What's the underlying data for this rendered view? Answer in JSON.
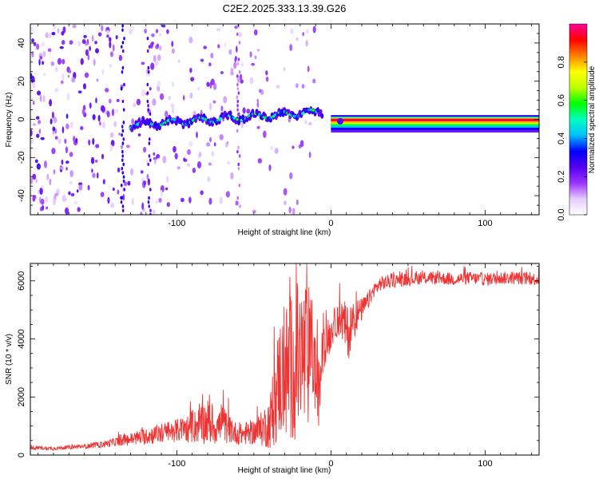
{
  "title": "C2E2.2025.333.13.39.G26",
  "chart_data": [
    {
      "type": "heatmap",
      "name": "spectrogram",
      "xlabel": "Height of straight line (km)",
      "ylabel": "Frequency (Hz)",
      "xlim": [
        -195,
        135
      ],
      "ylim": [
        -50,
        50
      ],
      "xticks": [
        -100,
        0,
        100
      ],
      "yticks": [
        -40,
        -20,
        0,
        20,
        40
      ],
      "colorbar": {
        "label": "Normalized spectral amplitude",
        "range": [
          0,
          1
        ],
        "ticks": [
          0.0,
          0.2,
          0.4,
          0.6,
          0.8
        ],
        "tick_labels": [
          "0.0",
          "0.2",
          "0.4",
          "0.6",
          "0.8"
        ],
        "colors": [
          "#ffffff",
          "#e6ccff",
          "#9933ff",
          "#5500ee",
          "#0000ff",
          "#00bfff",
          "#00ffbf",
          "#00ff00",
          "#bfff00",
          "#ffff00",
          "#ff8000",
          "#ff0000",
          "#ff0099"
        ]
      },
      "features": {
        "carrier_line": {
          "x_start": 0,
          "x_end": 135,
          "frequency_hz": 0,
          "amplitude": 0.95
        },
        "drifting_signal": {
          "x_start": -130,
          "x_end": -5,
          "frequency_start_hz": -3,
          "frequency_end_hz": 4,
          "amplitude_range": [
            0.3,
            0.6
          ]
        },
        "noise_region": {
          "x_start": -195,
          "x_end": -10,
          "amplitude_range": [
            0.05,
            0.3
          ]
        }
      }
    },
    {
      "type": "line",
      "name": "snr",
      "xlabel": "Height of straight line (km)",
      "ylabel": "SNR (10 * v/v)",
      "xlim": [
        -195,
        135
      ],
      "ylim": [
        0,
        6600
      ],
      "xticks": [
        -100,
        0,
        100
      ],
      "yticks": [
        0,
        2000,
        4000,
        6000
      ],
      "color": "#ee3333",
      "series": [
        {
          "name": "SNR",
          "x": [
            -195,
            -180,
            -160,
            -150,
            -140,
            -130,
            -120,
            -110,
            -100,
            -95,
            -90,
            -85,
            -80,
            -75,
            -70,
            -65,
            -60,
            -55,
            -50,
            -45,
            -40,
            -36,
            -34,
            -30,
            -26,
            -22,
            -18,
            -15,
            -12,
            -10,
            -8,
            -5,
            -2,
            0,
            2,
            5,
            8,
            10,
            12,
            15,
            18,
            20,
            24,
            28,
            32,
            40,
            50,
            60,
            70,
            80,
            90,
            100,
            110,
            120,
            135
          ],
          "y": [
            250,
            230,
            300,
            350,
            450,
            550,
            650,
            750,
            850,
            900,
            950,
            1050,
            1150,
            950,
            1050,
            850,
            700,
            750,
            800,
            900,
            1100,
            1800,
            2600,
            2800,
            3000,
            3200,
            3300,
            3400,
            3600,
            2700,
            2000,
            3800,
            4000,
            4200,
            4500,
            4700,
            4600,
            4300,
            4200,
            4700,
            4900,
            5000,
            5300,
            5700,
            5900,
            6000,
            6050,
            6100,
            6100,
            6050,
            6100,
            6050,
            6100,
            6100,
            6050
          ],
          "noise_amplitude": [
            60,
            60,
            80,
            100,
            150,
            220,
            300,
            350,
            400,
            450,
            550,
            650,
            800,
            600,
            650,
            450,
            350,
            400,
            450,
            600,
            900,
            1500,
            2000,
            2400,
            2600,
            2800,
            2800,
            2600,
            1800,
            1400,
            1200,
            900,
            700,
            600,
            550,
            600,
            800,
            900,
            900,
            700,
            500,
            400,
            300,
            250,
            250,
            250,
            220,
            220,
            220,
            220,
            220,
            220,
            220,
            220,
            220
          ]
        }
      ]
    }
  ]
}
